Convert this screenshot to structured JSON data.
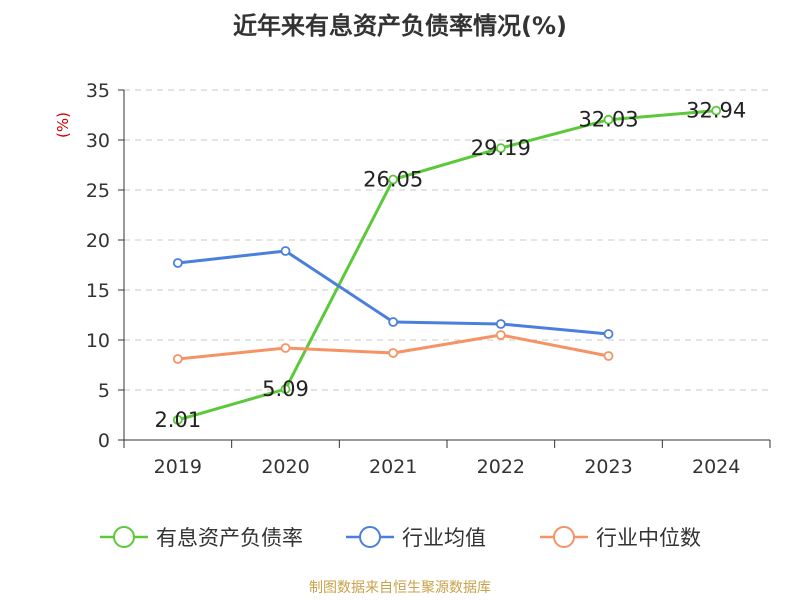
{
  "title": "近年来有息资产负债率情况(%)",
  "source": "制图数据来自恒生聚源数据库",
  "chart_data": {
    "type": "line",
    "title": "近年来有息资产负债率情况(%)",
    "ylabel": "(%)",
    "xlabel": "",
    "ylim": [
      0,
      35
    ],
    "yticks": [
      0,
      5,
      10,
      15,
      20,
      25,
      30,
      35
    ],
    "categories": [
      "2019",
      "2020",
      "2021",
      "2022",
      "2023",
      "2024"
    ],
    "grid": true,
    "legend_position": "bottom",
    "series": [
      {
        "name": "有息资产负债率",
        "color": "#5cc93a",
        "values": [
          2.01,
          5.09,
          26.05,
          29.19,
          32.03,
          32.94
        ],
        "labels": [
          "2.01",
          "5.09",
          "26.05",
          "29.19",
          "32.03",
          "32.94"
        ]
      },
      {
        "name": "行业均值",
        "color": "#4a7fdc",
        "values": [
          17.7,
          18.9,
          11.8,
          11.6,
          10.6,
          null
        ]
      },
      {
        "name": "行业中位数",
        "color": "#f59365",
        "values": [
          8.1,
          9.2,
          8.7,
          10.5,
          8.4,
          null
        ]
      }
    ]
  }
}
